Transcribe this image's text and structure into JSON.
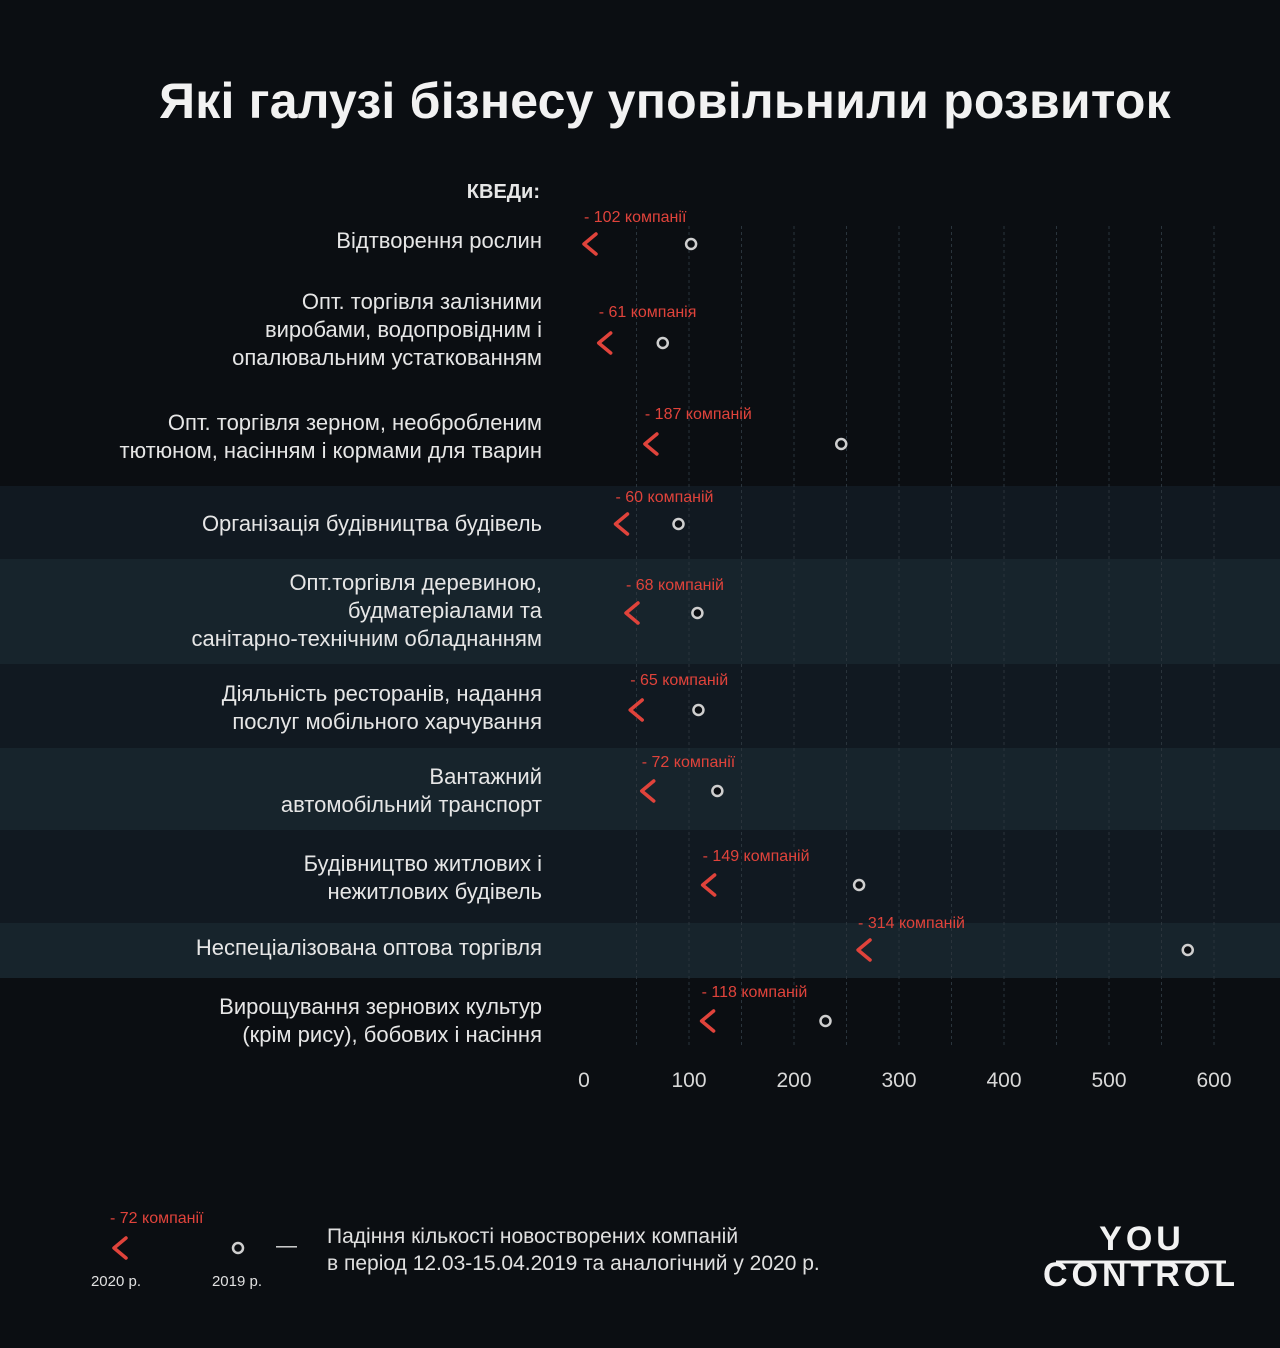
{
  "title": "Які галузі бізнесу уповільнили розвиток",
  "chart_data": {
    "type": "dumbbell-arrow",
    "category_header": "КВЕДи:",
    "xlim": [
      0,
      600
    ],
    "xticks": [
      0,
      100,
      200,
      300,
      400,
      500,
      600
    ],
    "colors": {
      "value_2020": "#e0433b",
      "value_2019": "#cccccc",
      "band": "#17242c"
    },
    "rows": [
      {
        "label": "Відтворення рослин",
        "value_2019": 102,
        "value_2020": 0,
        "delta_label": "- 102 компанії"
      },
      {
        "label": "Опт. торгівля залізними виробами, водопровідним і опалювальним устаткованням",
        "value_2019": 75,
        "value_2020": 14,
        "delta_label": "- 61 компанія"
      },
      {
        "label": "Опт. торгівля зерном, необробленим тютюном, насінням і кормами для тварин",
        "value_2019": 245,
        "value_2020": 58,
        "delta_label": "- 187 компаній"
      },
      {
        "label": "Організація будівництва будівель",
        "value_2019": 90,
        "value_2020": 30,
        "delta_label": "- 60 компаній"
      },
      {
        "label": "Опт.торгівля деревиною, будматеріалами та санітарно-технічним обладнанням",
        "value_2019": 108,
        "value_2020": 40,
        "delta_label": "- 68 компаній"
      },
      {
        "label": "Діяльність ресторанів, надання послуг мобільного харчування",
        "value_2019": 109,
        "value_2020": 44,
        "delta_label": "- 65 компаній"
      },
      {
        "label": "Вантажний автомобільний транспорт",
        "value_2019": 127,
        "value_2020": 55,
        "delta_label": "- 72 компанії"
      },
      {
        "label": "Будівництво житлових і нежитлових будівель",
        "value_2019": 262,
        "value_2020": 113,
        "delta_label": "- 149 компаній"
      },
      {
        "label": "Неспеціалізована оптова торгівля",
        "value_2019": 575,
        "value_2020": 261,
        "delta_label": "- 314 компаній"
      },
      {
        "label": "Вирощування зернових культур (крім рису), бобових і насіння",
        "value_2019": 230,
        "value_2020": 112,
        "delta_label": "- 118 компаній"
      }
    ]
  },
  "legend": {
    "delta_example": "- 72 компанії",
    "label_2020": "2020 р.",
    "label_2019": "2019 р.",
    "dash": "—",
    "description_line1": "Падіння кількості новостворених компаній",
    "description_line2": "в період 12.03-15.04.2019 та аналогічний у 2020 р."
  },
  "logo": {
    "line1": "YOU",
    "line2": "CONTROL"
  }
}
